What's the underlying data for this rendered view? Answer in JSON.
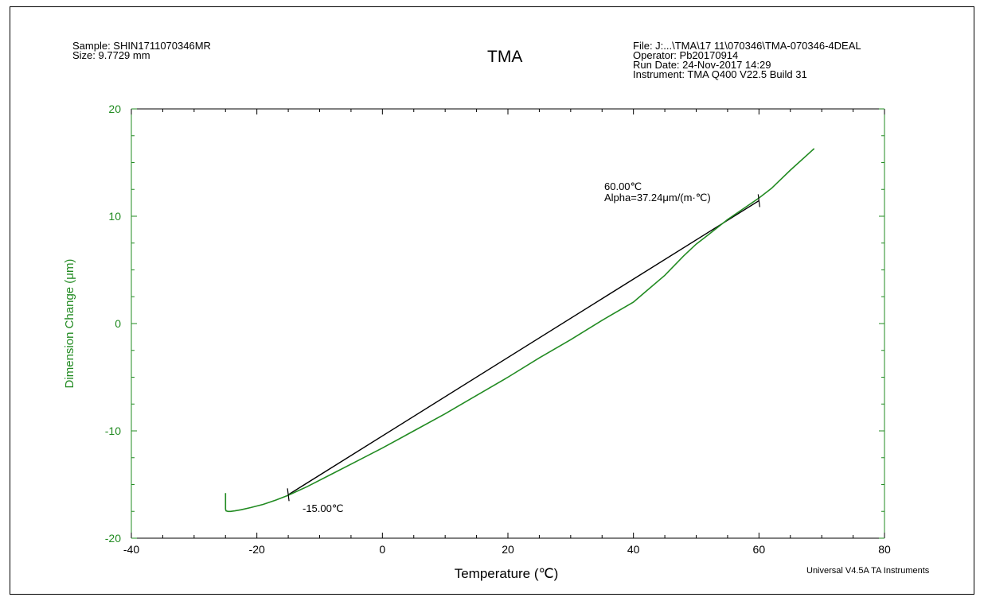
{
  "header": {
    "sample": "Sample: SHIN1711070346MR",
    "size": "Size:  9.7729 mm",
    "file": "File: J:...\\TMA\\17 11\\070346\\TMA-070346-4DEAL",
    "operator": "Operator: Pb20170914",
    "run_date": "Run Date: 24-Nov-2017 14:29",
    "instrument": "Instrument: TMA Q400 V22.5 Build 31"
  },
  "footer": "Universal V4.5A TA Instruments",
  "colors": {
    "curve": "#228B22",
    "axis_y": "#228B22",
    "axis_x": "#000000",
    "tangent": "#000000"
  },
  "chart_data": {
    "type": "line",
    "title": "TMA",
    "xlabel": "Temperature (℃)",
    "ylabel": "Dimension Change (μm)",
    "xlim": [
      -40,
      80
    ],
    "ylim": [
      -20,
      20
    ],
    "xticks": [
      -40,
      -20,
      0,
      20,
      40,
      60,
      80
    ],
    "yticks": [
      -20,
      -10,
      0,
      10,
      20
    ],
    "grid": false,
    "series": [
      {
        "values_x": [
          -25.0,
          -25.0,
          -25.0,
          -24.9,
          -24.6,
          -24.2,
          -23.5,
          -22.5,
          -21.0,
          -19.0,
          -17.0,
          -15.0,
          -12.0,
          -8.0,
          -4.0,
          0.0,
          5.0,
          10.0,
          15.0,
          20.0,
          25.0,
          30.0,
          35.0,
          40.0,
          42.0,
          45.0,
          48.0,
          50.0,
          52.0,
          55.0,
          58.0,
          60.0,
          62.0,
          65.0,
          68.8
        ],
        "values_y": [
          -15.8,
          -16.5,
          -17.3,
          -17.45,
          -17.5,
          -17.5,
          -17.45,
          -17.35,
          -17.15,
          -16.85,
          -16.45,
          -16.0,
          -15.2,
          -14.0,
          -12.8,
          -11.6,
          -10.0,
          -8.4,
          -6.7,
          -5.0,
          -3.2,
          -1.5,
          0.3,
          2.0,
          3.0,
          4.5,
          6.3,
          7.4,
          8.3,
          9.7,
          10.9,
          11.7,
          12.6,
          14.3,
          16.3
        ]
      }
    ],
    "tangent": {
      "x": [
        -15.0,
        60.0
      ],
      "y": [
        -15.95,
        11.45
      ]
    },
    "annotations": {
      "end_temp": "60.00℃",
      "alpha": "Alpha=37.24μm/(m·℃)",
      "start_temp": "-15.00℃"
    }
  }
}
